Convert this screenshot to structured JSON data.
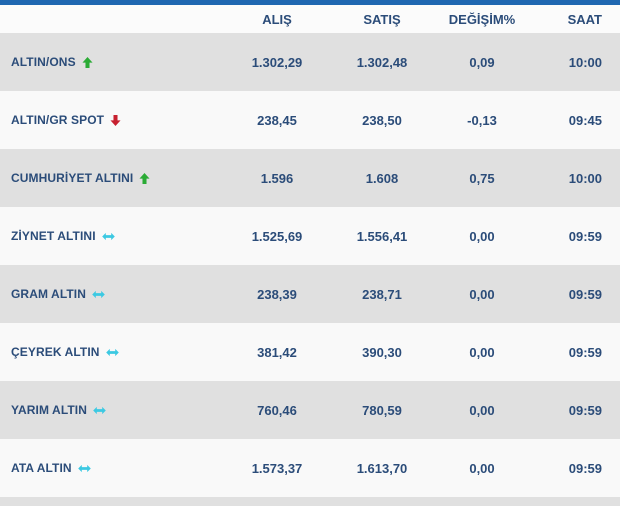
{
  "colors": {
    "accent_bar": "#1f67b1",
    "text_navy": "#2b4c79",
    "row_gray": "#e0e0e0",
    "row_white": "#f9f9f9",
    "header_bg": "#fbfbfb",
    "up_green": "#2bab35",
    "down_red": "#c7202f",
    "flat_cyan": "#3cc9e2"
  },
  "table": {
    "columns": {
      "name": "",
      "alis": "ALIŞ",
      "satis": "SATIŞ",
      "degisim": "DEĞİŞİM%",
      "saat": "SAAT"
    },
    "rows": [
      {
        "name": "ALTIN/ONS",
        "trend": "up",
        "alis": "1.302,29",
        "satis": "1.302,48",
        "degisim": "0,09",
        "saat": "10:00"
      },
      {
        "name": "ALTIN/GR SPOT",
        "trend": "down",
        "alis": "238,45",
        "satis": "238,50",
        "degisim": "-0,13",
        "saat": "09:45"
      },
      {
        "name": "CUMHURİYET ALTINI",
        "trend": "up",
        "alis": "1.596",
        "satis": "1.608",
        "degisim": "0,75",
        "saat": "10:00"
      },
      {
        "name": "ZİYNET ALTINI",
        "trend": "flat",
        "alis": "1.525,69",
        "satis": "1.556,41",
        "degisim": "0,00",
        "saat": "09:59"
      },
      {
        "name": "GRAM ALTIN",
        "trend": "flat",
        "alis": "238,39",
        "satis": "238,71",
        "degisim": "0,00",
        "saat": "09:59"
      },
      {
        "name": "ÇEYREK ALTIN",
        "trend": "flat",
        "alis": "381,42",
        "satis": "390,30",
        "degisim": "0,00",
        "saat": "09:59"
      },
      {
        "name": "YARIM ALTIN",
        "trend": "flat",
        "alis": "760,46",
        "satis": "780,59",
        "degisim": "0,00",
        "saat": "09:59"
      },
      {
        "name": "ATA ALTIN",
        "trend": "flat",
        "alis": "1.573,37",
        "satis": "1.613,70",
        "degisim": "0,00",
        "saat": "09:59"
      }
    ]
  }
}
